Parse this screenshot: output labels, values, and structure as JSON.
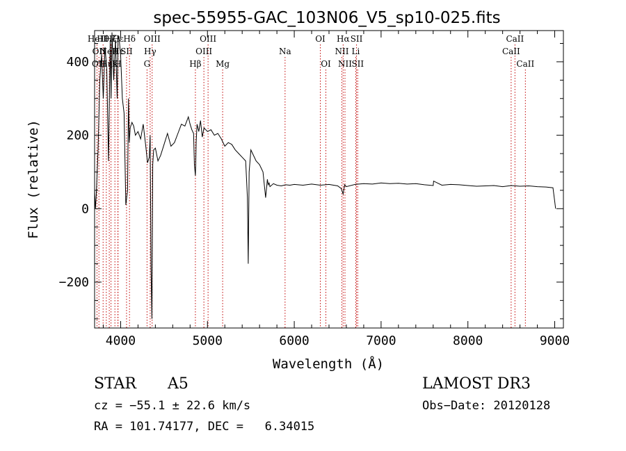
{
  "chart_data": {
    "type": "line",
    "title": "spec-55955-GAC_103N06_V5_sp10-025.fits",
    "xlabel": "Wavelength (Å)",
    "ylabel": "Flux (relative)",
    "xlim": [
      3700,
      9100
    ],
    "ylim": [
      -325,
      485
    ],
    "x_ticks": [
      4000,
      5000,
      6000,
      7000,
      8000,
      9000
    ],
    "y_ticks": [
      -200,
      0,
      200,
      400
    ],
    "grid": false,
    "series": [
      {
        "x": [
          3700,
          3710,
          3720,
          3730,
          3740,
          3760,
          3780,
          3800,
          3820,
          3840,
          3860,
          3880,
          3890,
          3900,
          3920,
          3940,
          3960,
          3970,
          3980,
          4000,
          4020,
          4040,
          4060,
          4080,
          4090,
          4100,
          4110,
          4130,
          4150,
          4170,
          4200,
          4230,
          4260,
          4290,
          4310,
          4330,
          4340,
          4350,
          4360,
          4370,
          4380,
          4400,
          4430,
          4460,
          4500,
          4540,
          4580,
          4620,
          4660,
          4700,
          4740,
          4780,
          4800,
          4820,
          4840,
          4850,
          4861,
          4865,
          4870,
          4880,
          4900,
          4920,
          4940,
          4960,
          5000,
          5040,
          5080,
          5120,
          5160,
          5200,
          5240,
          5280,
          5320,
          5360,
          5400,
          5440,
          5460,
          5470,
          5480,
          5500,
          5520,
          5560,
          5600,
          5640,
          5670,
          5690,
          5700,
          5710,
          5720,
          5760,
          5800,
          5850,
          5900,
          5950,
          6000,
          6100,
          6200,
          6300,
          6400,
          6500,
          6540,
          6563,
          6580,
          6600,
          6700,
          6800,
          6900,
          7000,
          7100,
          7200,
          7300,
          7400,
          7500,
          7600,
          7605,
          7700,
          7800,
          7900,
          8000,
          8100,
          8200,
          8300,
          8400,
          8500,
          8600,
          8700,
          8800,
          8900,
          8980,
          9000,
          9010
        ],
        "values": [
          50,
          0,
          40,
          100,
          160,
          350,
          420,
          300,
          440,
          380,
          130,
          460,
          300,
          480,
          350,
          460,
          300,
          460,
          470,
          420,
          300,
          260,
          10,
          50,
          300,
          180,
          220,
          235,
          225,
          200,
          210,
          190,
          230,
          170,
          125,
          140,
          200,
          -160,
          -300,
          120,
          160,
          165,
          130,
          145,
          175,
          205,
          170,
          180,
          205,
          230,
          225,
          250,
          230,
          215,
          205,
          120,
          90,
          120,
          180,
          230,
          210,
          240,
          195,
          220,
          210,
          215,
          200,
          205,
          190,
          170,
          180,
          175,
          160,
          150,
          140,
          130,
          30,
          -150,
          100,
          160,
          150,
          130,
          120,
          100,
          30,
          80,
          65,
          70,
          60,
          68,
          64,
          62,
          65,
          64,
          66,
          64,
          67,
          64,
          66,
          62,
          55,
          40,
          65,
          60,
          66,
          68,
          67,
          70,
          68,
          69,
          67,
          68,
          65,
          63,
          75,
          64,
          66,
          65,
          63,
          61,
          62,
          63,
          60,
          63,
          61,
          62,
          60,
          59,
          57,
          20,
          0
        ]
      }
    ],
    "line_markers": [
      {
        "label": "HeII",
        "x": 3727,
        "row": 0
      },
      {
        "label": "OII",
        "x": 3750,
        "row": 1
      },
      {
        "label": "OII",
        "x": 3745,
        "row": 2
      },
      {
        "label": "Hθ",
        "x": 3798,
        "row": 0
      },
      {
        "label": "Hη",
        "x": 3835,
        "row": 2
      },
      {
        "label": "NeII",
        "x": 3869,
        "row": 1
      },
      {
        "label": "Hζ",
        "x": 3889,
        "row": 0
      },
      {
        "label": "Hε",
        "x": 3970,
        "row": 0
      },
      {
        "label": "Hε",
        "x": 3970,
        "row": 1
      },
      {
        "label": "K",
        "x": 3934,
        "row": 2
      },
      {
        "label": "H",
        "x": 3968,
        "row": 2
      },
      {
        "label": "Hδ",
        "x": 4102,
        "row": 0
      },
      {
        "label": "SII",
        "x": 4068,
        "row": 1
      },
      {
        "label": "OIII",
        "x": 4363,
        "row": 0
      },
      {
        "label": "Hγ",
        "x": 4340,
        "row": 1
      },
      {
        "label": "G",
        "x": 4304,
        "row": 2
      },
      {
        "label": "OIII",
        "x": 5007,
        "row": 0
      },
      {
        "label": "OIII",
        "x": 4959,
        "row": 1
      },
      {
        "label": "Hβ",
        "x": 4861,
        "row": 2
      },
      {
        "label": "Mg",
        "x": 5175,
        "row": 2
      },
      {
        "label": "Na",
        "x": 5894,
        "row": 1
      },
      {
        "label": "OI",
        "x": 6300,
        "row": 0
      },
      {
        "label": "OI",
        "x": 6364,
        "row": 2
      },
      {
        "label": "Hα",
        "x": 6563,
        "row": 0
      },
      {
        "label": "SII",
        "x": 6717,
        "row": 0
      },
      {
        "label": "NII",
        "x": 6548,
        "row": 1
      },
      {
        "label": "Li",
        "x": 6708,
        "row": 1
      },
      {
        "label": "NII",
        "x": 6584,
        "row": 2
      },
      {
        "label": "SII",
        "x": 6731,
        "row": 2
      },
      {
        "label": "CaII",
        "x": 8542,
        "row": 0
      },
      {
        "label": "CaII",
        "x": 8498,
        "row": 1
      },
      {
        "label": "CaII",
        "x": 8662,
        "row": 2
      }
    ]
  },
  "info": {
    "class_label": "STAR",
    "subclass": "A5",
    "survey": "LAMOST DR3",
    "cz_line": "cz = −55.1 ± 22.6 km/s",
    "obs_date": "Obs−Date: 20120128",
    "coords": "RA = 101.74177, DEC =   6.34015"
  }
}
